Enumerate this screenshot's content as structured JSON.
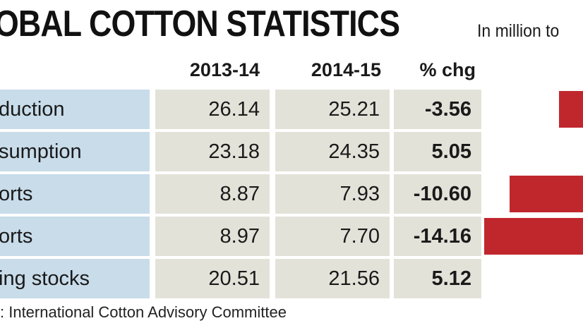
{
  "title": "OBAL COTTON STATISTICS",
  "unit_note": "In million to",
  "source": ": International Cotton Advisory Committee",
  "colors": {
    "label_bg": "#c8dcea",
    "value_bg": "#e3e2d9",
    "bar": "#c0272d"
  },
  "chart_data": {
    "type": "table",
    "title": "OBAL COTTON STATISTICS",
    "columns": [
      "2013-14",
      "2014-15",
      "% chg"
    ],
    "rows": [
      {
        "label": "duction",
        "v2013": "26.14",
        "v2014": "25.21",
        "chg": "-3.56",
        "chg_value": -3.56
      },
      {
        "label": "sumption",
        "v2013": "23.18",
        "v2014": "24.35",
        "chg": "5.05",
        "chg_value": 5.05
      },
      {
        "label": "orts",
        "v2013": "8.87",
        "v2014": "7.93",
        "chg": "-10.60",
        "chg_value": -10.6
      },
      {
        "label": "orts",
        "v2013": "8.97",
        "v2014": "7.70",
        "chg": "-14.16",
        "chg_value": -14.16
      },
      {
        "label": "ing stocks",
        "v2013": "20.51",
        "v2014": "21.56",
        "chg": "5.12",
        "chg_value": 5.12
      }
    ]
  }
}
